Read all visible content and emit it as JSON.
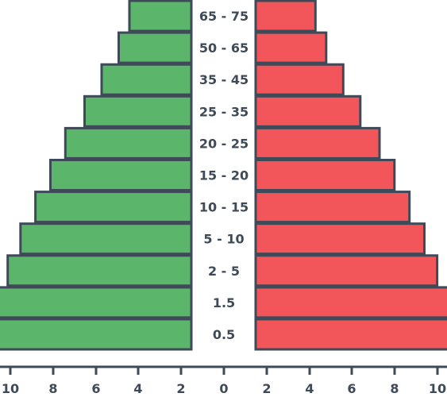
{
  "chart_data": {
    "type": "bar",
    "orientation": "horizontal",
    "layout": "population-pyramid",
    "categories": [
      "65 - 75",
      "50 - 65",
      "35 - 45",
      "25 - 35",
      "20 - 25",
      "15 - 20",
      "10 - 15",
      "5 - 10",
      "2 - 5",
      "1.5",
      "0.5"
    ],
    "series": [
      {
        "side": "left",
        "color": "#5bb56a",
        "values": [
          2.9,
          3.4,
          4.2,
          5.0,
          5.9,
          6.6,
          7.3,
          8.0,
          8.6,
          9.4,
          10.4
        ]
      },
      {
        "side": "right",
        "color": "#f2565a",
        "values": [
          2.8,
          3.3,
          4.1,
          4.9,
          5.8,
          6.5,
          7.2,
          7.9,
          8.5,
          9.3,
          10.4
        ]
      }
    ],
    "xticks": [
      "10",
      "8",
      "6",
      "4",
      "2",
      "0",
      "2",
      "4",
      "6",
      "8",
      "10"
    ],
    "xlim": [
      0,
      10.4
    ],
    "grid": false,
    "legend": "none",
    "title": "",
    "xlabel": "",
    "ylabel": ""
  }
}
